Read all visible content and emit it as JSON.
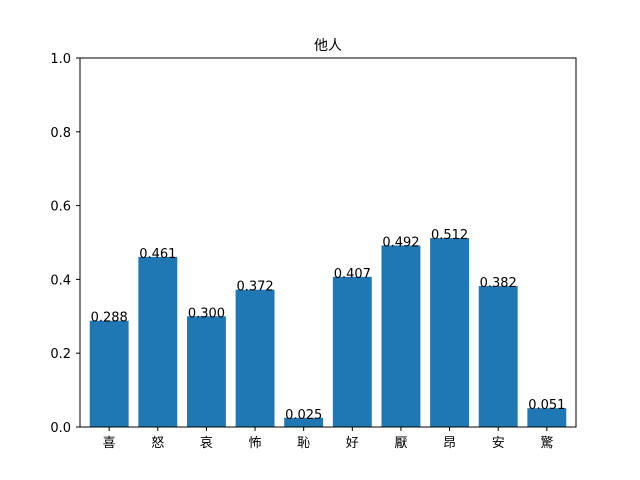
{
  "chart_data": {
    "type": "bar",
    "title": "他人",
    "xlabel": "",
    "ylabel": "",
    "categories": [
      "喜",
      "怒",
      "哀",
      "怖",
      "恥",
      "好",
      "厭",
      "昂",
      "安",
      "驚"
    ],
    "values": [
      0.288,
      0.461,
      0.3,
      0.372,
      0.025,
      0.407,
      0.492,
      0.512,
      0.382,
      0.051
    ],
    "value_labels": [
      "0.288",
      "0.461",
      "0.300",
      "0.372",
      "0.025",
      "0.407",
      "0.492",
      "0.512",
      "0.382",
      "0.051"
    ],
    "ylim": [
      0,
      1.0
    ],
    "yticks": [
      0.0,
      0.2,
      0.4,
      0.6,
      0.8,
      1.0
    ],
    "ytick_labels": [
      "0.0",
      "0.2",
      "0.4",
      "0.6",
      "0.8",
      "1.0"
    ],
    "grid": false,
    "bar_color": "#1f77b4"
  }
}
